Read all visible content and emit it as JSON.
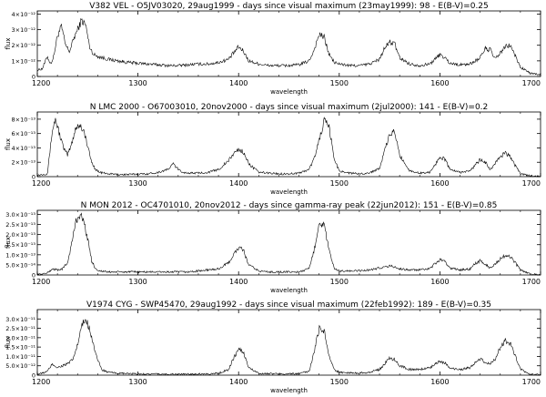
{
  "chart_data": [
    {
      "type": "line",
      "title": "V382 VEL - O5JV03020, 29aug1999 - days since visual maximum (23may1999): 98 - E(B-V)=0.25",
      "xlabel": "wavelength",
      "ylabel": "flux",
      "xlim": [
        1200,
        1700
      ],
      "ylim": [
        0,
        4.2e-12
      ],
      "xticks": [
        "1200",
        "1300",
        "1400",
        "1500",
        "1600",
        "1700"
      ],
      "yticks": [
        {
          "v": 0,
          "l": "0"
        },
        {
          "v": 1e-12,
          "l": "1×10⁻¹²"
        },
        {
          "v": 2e-12,
          "l": "2×10⁻¹²"
        },
        {
          "v": 3e-12,
          "l": "3×10⁻¹²"
        },
        {
          "v": 4e-12,
          "l": "4×10⁻¹²"
        }
      ],
      "series": [
        {
          "x": [
            1200,
            1205,
            1210,
            1213,
            1216,
            1220,
            1224,
            1228,
            1232,
            1236,
            1240,
            1244,
            1248,
            1252,
            1256,
            1260,
            1265,
            1270,
            1280,
            1290,
            1300,
            1310,
            1320,
            1330,
            1340,
            1350,
            1360,
            1370,
            1380,
            1390,
            1395,
            1400,
            1405,
            1410,
            1420,
            1430,
            1440,
            1450,
            1460,
            1470,
            1475,
            1480,
            1485,
            1490,
            1495,
            1500,
            1510,
            1520,
            1530,
            1540,
            1545,
            1550,
            1555,
            1560,
            1570,
            1580,
            1590,
            1595,
            1600,
            1605,
            1610,
            1620,
            1630,
            1640,
            1645,
            1650,
            1655,
            1660,
            1665,
            1670,
            1675,
            1680,
            1690,
            1700
          ],
          "y": [
            4e-13,
            5e-13,
            1.3e-12,
            8e-13,
            1.2e-12,
            2.6e-12,
            3.2e-12,
            2e-12,
            1.6e-12,
            2.4e-12,
            3e-12,
            3.6e-12,
            3.3e-12,
            1.9e-12,
            1.4e-12,
            1.3e-12,
            1.2e-12,
            1.1e-12,
            1e-12,
            9e-13,
            8.5e-13,
            8e-13,
            7.5e-13,
            7e-13,
            7e-13,
            7.5e-13,
            8e-13,
            8e-13,
            9e-13,
            1.1e-12,
            1.5e-12,
            1.9e-12,
            1.6e-12,
            1e-12,
            8e-13,
            7e-13,
            7e-13,
            7e-13,
            7.5e-13,
            1e-12,
            1.7e-12,
            2.7e-12,
            2.5e-12,
            1.4e-12,
            9e-13,
            8e-13,
            7e-13,
            7e-13,
            8e-13,
            1.1e-12,
            1.8e-12,
            2.2e-12,
            2.1e-12,
            1.2e-12,
            8e-13,
            7e-13,
            8e-13,
            1.1e-12,
            1.4e-12,
            1.2e-12,
            8.5e-13,
            7.5e-13,
            8e-13,
            1.2e-12,
            1.8e-12,
            1.7e-12,
            1.1e-12,
            1.5e-12,
            1.9e-12,
            2e-12,
            1.3e-12,
            6e-13,
            2e-13,
            1e-13
          ]
        }
      ]
    },
    {
      "type": "line",
      "title": "N LMC 2000 - O67003010, 20nov2000 - days since visual maximum (2jul2000): 141 - E(B-V)=0.2",
      "xlabel": "wavelength",
      "ylabel": "flux",
      "xlim": [
        1200,
        1700
      ],
      "ylim": [
        0,
        9e-13
      ],
      "xticks": [
        "1200",
        "1300",
        "1400",
        "1500",
        "1600",
        "1700"
      ],
      "yticks": [
        {
          "v": 0,
          "l": "0"
        },
        {
          "v": 2e-13,
          "l": "2×10⁻¹³"
        },
        {
          "v": 4e-13,
          "l": "4×10⁻¹³"
        },
        {
          "v": 6e-13,
          "l": "6×10⁻¹³"
        },
        {
          "v": 8e-13,
          "l": "8×10⁻¹³"
        }
      ],
      "series": [
        {
          "x": [
            1200,
            1205,
            1210,
            1215,
            1218,
            1222,
            1226,
            1230,
            1234,
            1238,
            1242,
            1246,
            1250,
            1254,
            1258,
            1262,
            1270,
            1280,
            1290,
            1300,
            1310,
            1320,
            1330,
            1335,
            1340,
            1345,
            1350,
            1360,
            1370,
            1380,
            1390,
            1395,
            1400,
            1405,
            1410,
            1420,
            1430,
            1440,
            1450,
            1460,
            1470,
            1475,
            1480,
            1485,
            1490,
            1495,
            1500,
            1510,
            1520,
            1530,
            1540,
            1545,
            1550,
            1555,
            1560,
            1570,
            1580,
            1590,
            1595,
            1600,
            1605,
            1610,
            1620,
            1630,
            1635,
            1640,
            1645,
            1650,
            1655,
            1660,
            1665,
            1670,
            1675,
            1680,
            1690,
            1700
          ],
          "y": [
            2e-14,
            3e-14,
            4e-14,
            6.5e-13,
            8e-13,
            6e-13,
            4e-13,
            3e-13,
            4.5e-13,
            6.8e-13,
            7.2e-13,
            6.5e-13,
            4.2e-13,
            2e-13,
            1e-13,
            6e-14,
            4e-14,
            3e-14,
            3e-14,
            3.5e-14,
            4e-14,
            6e-14,
            1e-13,
            1.8e-13,
            1e-13,
            6e-14,
            5e-14,
            5e-14,
            6e-14,
            1e-13,
            2.2e-13,
            3.2e-13,
            3.8e-13,
            3.4e-13,
            1.8e-13,
            6e-14,
            5e-14,
            4e-14,
            4e-14,
            5e-14,
            1e-13,
            2.5e-13,
            5e-13,
            7.8e-13,
            6.8e-13,
            2.5e-13,
            8e-14,
            5e-14,
            4e-14,
            5e-14,
            1.2e-13,
            3.5e-13,
            5.8e-13,
            6.3e-13,
            3e-13,
            8e-14,
            5e-14,
            6e-14,
            1.6e-13,
            2.8e-13,
            2.4e-13,
            1e-13,
            6e-14,
            8e-14,
            1.6e-13,
            2.4e-13,
            2e-13,
            1e-13,
            1.8e-13,
            2.8e-13,
            3.3e-13,
            2.8e-13,
            1.5e-13,
            4e-14,
            1e-14,
            5e-15
          ]
        }
      ]
    },
    {
      "type": "line",
      "title": "N MON 2012 - OC4701010, 20nov2012 - days since gamma-ray peak (22jun2012): 151 - E(B-V)=0.85",
      "xlabel": "wavelength",
      "ylabel": "flux",
      "xlim": [
        1200,
        1700
      ],
      "ylim": [
        0,
        3.2e-13
      ],
      "xticks": [
        "1200",
        "1300",
        "1400",
        "1500",
        "1600",
        "1700"
      ],
      "yticks": [
        {
          "v": 0,
          "l": "0"
        },
        {
          "v": 5e-14,
          "l": "5.0×10⁻¹⁴"
        },
        {
          "v": 1e-13,
          "l": "1.0×10⁻¹³"
        },
        {
          "v": 1.5e-13,
          "l": "1.5×10⁻¹³"
        },
        {
          "v": 2e-13,
          "l": "2.0×10⁻¹³"
        },
        {
          "v": 2.5e-13,
          "l": "2.5×10⁻¹³"
        },
        {
          "v": 3e-13,
          "l": "3.0×10⁻¹³"
        }
      ],
      "series": [
        {
          "x": [
            1200,
            1205,
            1210,
            1215,
            1220,
            1225,
            1230,
            1234,
            1238,
            1242,
            1246,
            1250,
            1254,
            1258,
            1262,
            1270,
            1280,
            1290,
            1300,
            1310,
            1320,
            1330,
            1340,
            1350,
            1360,
            1370,
            1380,
            1390,
            1395,
            1400,
            1405,
            1410,
            1420,
            1430,
            1440,
            1450,
            1460,
            1470,
            1475,
            1480,
            1485,
            1490,
            1495,
            1500,
            1510,
            1520,
            1530,
            1540,
            1545,
            1550,
            1555,
            1560,
            1570,
            1580,
            1590,
            1595,
            1600,
            1605,
            1610,
            1620,
            1630,
            1635,
            1640,
            1645,
            1650,
            1655,
            1660,
            1665,
            1670,
            1675,
            1680,
            1690,
            1700
          ],
          "y": [
            2e-15,
            5e-15,
            1e-14,
            3e-14,
            2.5e-14,
            3e-14,
            6e-14,
            1.5e-13,
            2.6e-13,
            3e-13,
            2.7e-13,
            1.8e-13,
            7e-14,
            3e-14,
            2e-14,
            1.5e-14,
            1.5e-14,
            1.5e-14,
            1.5e-14,
            1.5e-14,
            1.5e-14,
            1.5e-14,
            1.5e-14,
            1.5e-14,
            2e-14,
            2.5e-14,
            3e-14,
            6e-14,
            1e-13,
            1.35e-13,
            1.2e-13,
            5e-14,
            2e-14,
            1.5e-14,
            1.5e-14,
            1.5e-14,
            1.5e-14,
            3e-14,
            1.2e-13,
            2.6e-13,
            2.45e-13,
            1.2e-13,
            3e-14,
            2e-14,
            2e-14,
            2e-14,
            2.5e-14,
            3.5e-14,
            4e-14,
            4.5e-14,
            4e-14,
            3e-14,
            2.5e-14,
            2.5e-14,
            3e-14,
            5.5e-14,
            7.5e-14,
            6.5e-14,
            3.5e-14,
            2.5e-14,
            3e-14,
            5.5e-14,
            7e-14,
            5.5e-14,
            3.5e-14,
            5.5e-14,
            8e-14,
            9.5e-14,
            9e-14,
            6e-14,
            2.5e-14,
            5e-15,
            2e-15
          ]
        }
      ]
    },
    {
      "type": "line",
      "title": "V1974 CYG - SWP45470, 29aug1992 - days since visual maximum (22feb1992): 189 - E(B-V)=0.35",
      "xlabel": "wavelength",
      "ylabel": "flux",
      "xlim": [
        1200,
        1700
      ],
      "ylim": [
        0,
        3.5e-11
      ],
      "xticks": [
        "1200",
        "1300",
        "1400",
        "1500",
        "1600",
        "1700"
      ],
      "yticks": [
        {
          "v": 0,
          "l": "0"
        },
        {
          "v": 5e-12,
          "l": "5.0×10⁻¹²"
        },
        {
          "v": 1e-11,
          "l": "1.0×10⁻¹¹"
        },
        {
          "v": 1.5e-11,
          "l": "1.5×10⁻¹¹"
        },
        {
          "v": 2e-11,
          "l": "2.0×10⁻¹¹"
        },
        {
          "v": 2.5e-11,
          "l": "2.5×10⁻¹¹"
        },
        {
          "v": 3e-11,
          "l": "3.0×10⁻¹¹"
        }
      ],
      "series": [
        {
          "x": [
            1200,
            1205,
            1210,
            1215,
            1220,
            1225,
            1230,
            1235,
            1240,
            1244,
            1248,
            1252,
            1256,
            1260,
            1264,
            1270,
            1280,
            1290,
            1300,
            1310,
            1320,
            1330,
            1340,
            1350,
            1360,
            1370,
            1380,
            1390,
            1395,
            1400,
            1405,
            1410,
            1420,
            1430,
            1440,
            1450,
            1460,
            1470,
            1475,
            1480,
            1485,
            1490,
            1495,
            1500,
            1510,
            1520,
            1530,
            1540,
            1545,
            1550,
            1555,
            1560,
            1570,
            1580,
            1590,
            1595,
            1600,
            1605,
            1610,
            1620,
            1630,
            1635,
            1640,
            1645,
            1650,
            1655,
            1660,
            1665,
            1670,
            1675,
            1680,
            1690,
            1700
          ],
          "y": [
            5e-13,
            1e-12,
            2e-12,
            6e-12,
            4e-12,
            5e-12,
            6e-12,
            8e-12,
            1.6e-11,
            2.6e-11,
            3e-11,
            2.5e-11,
            1.6e-11,
            8e-12,
            3e-12,
            1.5e-12,
            1e-12,
            8e-13,
            6e-13,
            6e-13,
            5e-13,
            5e-13,
            5e-13,
            5e-13,
            6e-13,
            7e-13,
            1e-12,
            3e-12,
            9e-12,
            1.4e-11,
            1.2e-11,
            4e-12,
            1e-12,
            8e-13,
            7e-13,
            7e-13,
            8e-13,
            2e-12,
            1.2e-11,
            2.5e-11,
            2.4e-11,
            1e-11,
            3e-12,
            1.5e-12,
            1.2e-12,
            1.2e-12,
            1.5e-12,
            3e-12,
            6e-12,
            9e-12,
            8.5e-12,
            5e-12,
            3e-12,
            3e-12,
            4e-12,
            6e-12,
            7.5e-12,
            6.5e-12,
            3.5e-12,
            3e-12,
            4e-12,
            6.5e-12,
            8.5e-12,
            7e-12,
            6e-12,
            8.5e-12,
            1.5e-11,
            1.85e-11,
            1.7e-11,
            1e-11,
            3e-12,
            5e-13,
            2e-13
          ]
        }
      ]
    }
  ]
}
